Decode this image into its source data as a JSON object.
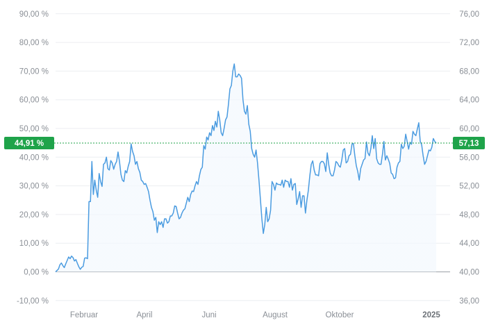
{
  "chart_data": {
    "type": "area",
    "x_tick_labels": [
      "Februar",
      "April",
      "Juni",
      "August",
      "Oktober",
      "2025"
    ],
    "y_left": {
      "unit": "%",
      "range": [
        -10,
        90
      ],
      "ticks": [
        -10,
        0,
        10,
        20,
        30,
        40,
        50,
        60,
        70,
        80,
        90
      ],
      "tick_labels": [
        "-10,00 %",
        "0,00 %",
        "10,00 %",
        "20,00 %",
        "30,00 %",
        "40,00 %",
        "50,00 %",
        "60,00 %",
        "70,00 %",
        "80,00 %",
        "90,00 %"
      ]
    },
    "y_right": {
      "range": [
        36,
        76
      ],
      "ticks": [
        36,
        40,
        44,
        48,
        52,
        56,
        60,
        64,
        68,
        72,
        76
      ],
      "tick_labels": [
        "36,00",
        "40,00",
        "44,00",
        "48,00",
        "52,00",
        "56,00",
        "60,00",
        "64,00",
        "68,00",
        "72,00",
        "76,00"
      ]
    },
    "current": {
      "percent": 44.91,
      "percent_label": "44,91 %",
      "price": 57.13,
      "price_label": "57,13"
    },
    "grid": true,
    "colors": {
      "line": "#4a9be0",
      "fill_top": "#a9cdf5",
      "fill_bottom": "#f3f8fe",
      "badge": "#1fa34a",
      "reference_line": "#1fa34a",
      "grid": "#eceef1",
      "baseline": "#9aa0a6"
    },
    "series": [
      {
        "values": [
          0,
          0.5,
          1,
          2.5,
          3.1,
          2.2,
          1.5,
          2.8,
          4,
          5.2,
          4.6,
          5.5,
          5,
          3.8,
          4.3,
          3,
          1.8,
          0.9,
          1.6,
          1.9,
          4.8,
          4.9,
          4.6,
          24.5,
          24.5,
          38.5,
          27,
          32,
          28.5,
          26,
          34.3,
          31.5,
          29.8,
          37.5,
          38,
          40,
          36,
          35.5,
          38.8,
          38,
          35.8,
          37.5,
          38.5,
          41.8,
          38.5,
          34,
          32,
          31.5,
          35.3,
          34.5,
          36.8,
          38.5,
          44.6,
          42,
          40.5,
          37.5,
          38.5,
          36,
          34.7,
          32,
          31.5,
          30.5,
          30.8,
          29.5,
          28,
          25,
          22.5,
          21,
          18,
          19,
          13.7,
          17.5,
          16.5,
          17.5,
          15.5,
          18.5,
          18.5,
          17,
          17.5,
          19.5,
          19.5,
          20.5,
          23,
          22.8,
          20.5,
          18.5,
          19,
          20.5,
          21.5,
          22,
          24,
          26,
          24.5,
          27,
          28.2,
          28,
          30,
          31.5,
          30.5,
          33.5,
          35.7,
          36.5,
          44,
          42.8,
          47,
          46,
          48.5,
          47.5,
          51,
          49.3,
          52.5,
          50.5,
          56,
          53,
          48.5,
          47.5,
          50,
          53,
          54,
          58.5,
          63.8,
          65,
          70,
          72.5,
          68,
          68,
          69,
          68.5,
          67.5,
          60,
          56,
          55,
          58,
          51.5,
          49,
          43,
          41,
          40,
          42.5,
          38,
          32,
          25.3,
          18.5,
          13.4,
          16.5,
          22.5,
          17.5,
          18.5,
          21.5,
          31.5,
          30.5,
          28.5,
          31,
          30.5,
          30.5,
          30.2,
          32,
          29.5,
          32,
          31.5,
          31.5,
          29.5,
          32.5,
          28.5,
          30.5,
          30.8,
          23.5,
          25.5,
          28,
          22.5,
          26.5,
          26.5,
          20.5,
          25,
          28.5,
          33.5,
          37.5,
          38.7,
          35.5,
          33.8,
          33.8,
          33.5,
          37.8,
          38.5,
          38.5,
          37.7,
          35,
          41.5,
          37.5,
          34.5,
          33.5,
          33.5,
          35.5,
          38.5,
          38,
          37,
          36.5,
          39,
          42.5,
          43,
          38,
          38.5,
          40.5,
          41,
          44.5,
          44.8,
          40.5,
          37,
          35,
          32,
          36,
          37.5,
          39,
          39.5,
          45.3,
          41.5,
          40.5,
          43,
          47.5,
          43,
          46.5,
          39.5,
          38,
          37.5,
          37.5,
          41,
          45.5,
          39,
          40.5,
          39.3,
          37.8,
          34.5,
          34,
          32.5,
          32.8,
          36.5,
          38,
          38.5,
          44.5,
          43,
          43.8,
          48,
          45.5,
          42.8,
          45.2,
          44.5,
          49,
          48,
          47.5,
          49.8,
          52,
          45.5,
          44.3,
          40.5,
          37.5,
          38.5,
          40.5,
          42.5,
          42.2,
          43.5,
          46.5,
          45.5,
          44.9
        ]
      }
    ]
  }
}
